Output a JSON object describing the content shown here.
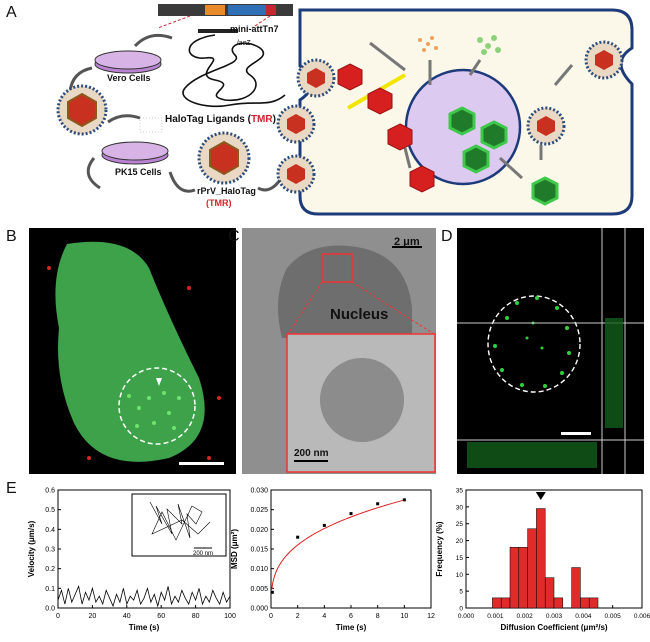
{
  "panels": {
    "a": "A",
    "b": "B",
    "c": "C",
    "d": "D",
    "e": "E"
  },
  "panelA": {
    "mini_att": "mini-attTn7",
    "lacz": "lacZ",
    "vero": "Vero Cells",
    "ligands_prefix": "HaloTag Ligands (",
    "ligands_tmr": "TMR",
    "ligands_suffix": ")",
    "pk15": "PK15 Cells",
    "rprv": "rPrV_HaloTag",
    "rprv_tmr": "(TMR)"
  },
  "panelC": {
    "scale_top": "2 μm",
    "nucleus": "Nucleus",
    "scale_bottom": "200 nm"
  },
  "chart_data": [
    {
      "type": "line",
      "xlabel": "Time (s)",
      "ylabel": "Velocity (μm/s)",
      "xlim": [
        0,
        100
      ],
      "ylim": [
        0,
        0.6
      ],
      "xticks": [
        0,
        20,
        40,
        60,
        80,
        100
      ],
      "yticks": [
        0.0,
        0.1,
        0.2,
        0.3,
        0.4,
        0.5,
        0.6
      ],
      "inset_scale": "200 nm",
      "x": [
        0,
        2,
        4,
        6,
        8,
        10,
        12,
        14,
        16,
        18,
        20,
        22,
        24,
        26,
        28,
        30,
        32,
        34,
        36,
        38,
        40,
        42,
        44,
        46,
        48,
        50,
        52,
        54,
        56,
        58,
        60,
        62,
        64,
        66,
        68,
        70,
        72,
        74,
        76,
        78,
        80,
        82,
        84,
        86,
        88,
        90,
        92,
        94,
        96,
        98,
        100
      ],
      "y": [
        0.04,
        0.09,
        0.02,
        0.1,
        0.03,
        0.07,
        0.11,
        0.02,
        0.08,
        0.04,
        0.1,
        0.03,
        0.06,
        0.02,
        0.09,
        0.05,
        0.01,
        0.07,
        0.03,
        0.1,
        0.02,
        0.06,
        0.04,
        0.09,
        0.02,
        0.05,
        0.1,
        0.03,
        0.07,
        0.01,
        0.08,
        0.04,
        0.11,
        0.02,
        0.06,
        0.03,
        0.09,
        0.05,
        0.02,
        0.08,
        0.04,
        0.1,
        0.02,
        0.06,
        0.03,
        0.09,
        0.05,
        0.02,
        0.08,
        0.03,
        0.06
      ]
    },
    {
      "type": "scatter",
      "xlabel": "Time (s)",
      "ylabel": "MSD (μm²)",
      "xlim": [
        0,
        12
      ],
      "ylim": [
        0,
        0.03
      ],
      "xticks": [
        0,
        2,
        4,
        6,
        8,
        10,
        12
      ],
      "yticks": [
        0.0,
        0.005,
        0.01,
        0.015,
        0.02,
        0.025,
        0.03
      ],
      "x": [
        0.1,
        2,
        4,
        6,
        8,
        10
      ],
      "y": [
        0.004,
        0.018,
        0.021,
        0.024,
        0.0265,
        0.0275
      ],
      "fit": true
    },
    {
      "type": "bar",
      "xlabel": "Diffusion Coefficient (μm²/s)",
      "ylabel": "Frequency (%)",
      "xlim": [
        0,
        0.006
      ],
      "ylim": [
        0,
        35
      ],
      "xticks": [
        0.0,
        0.001,
        0.002,
        0.003,
        0.004,
        0.005,
        0.006
      ],
      "yticks": [
        0,
        5,
        10,
        15,
        20,
        25,
        30,
        35
      ],
      "bin_width": 0.0003,
      "bin_starts": [
        0.0009,
        0.0012,
        0.0015,
        0.0018,
        0.0021,
        0.0024,
        0.0027,
        0.003,
        0.0033,
        0.0036,
        0.0039,
        0.0042,
        0.0045
      ],
      "values": [
        3,
        3,
        18,
        18,
        23.5,
        29.5,
        9,
        3,
        0,
        12,
        3,
        3,
        0
      ],
      "marker_x": 0.00255
    }
  ]
}
